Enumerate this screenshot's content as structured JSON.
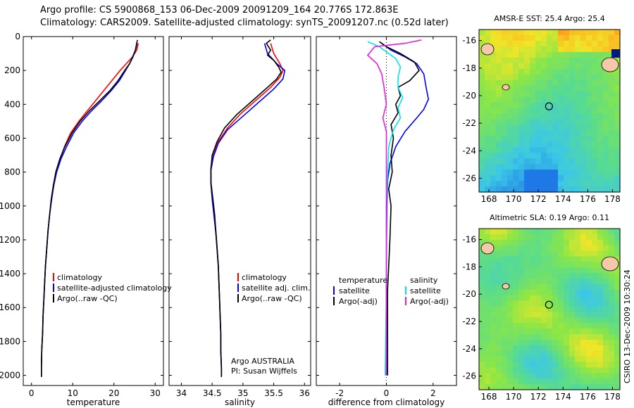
{
  "header": {
    "line1": "Argo profile: CS 5900868_153 06-Dec-2009 20091209_164 20.776S 172.863E",
    "line2": "Climatology: CARS2009. Satellite-adjusted climatology: synTS_20091207.nc (0.52d later)"
  },
  "side_label": "CSIRO 13-Dec-2009 10:30:24",
  "colors": {
    "climatology": "#ff0000",
    "satellite": "#0000ff",
    "argo": "#000000",
    "sal_sat": "#00e6e6",
    "sal_argo": "#e61ee6"
  },
  "chart_data": [
    {
      "type": "line",
      "id": "temp",
      "xlabel": "temperature",
      "ylabel": "",
      "xlim": [
        -2,
        32
      ],
      "ylim": [
        2060,
        0
      ],
      "xticks": [
        0,
        10,
        20,
        30
      ],
      "yticks": [
        0,
        200,
        400,
        600,
        800,
        1000,
        1200,
        1400,
        1600,
        1800,
        2000
      ],
      "legend": [
        "climatology",
        "satellite-adjusted climatology",
        "Argo(..raw -QC)"
      ],
      "series": [
        {
          "name": "climatology",
          "color": "#ff0000",
          "points": [
            [
              25.9,
              40
            ],
            [
              25.5,
              80
            ],
            [
              24.5,
              120
            ],
            [
              23.0,
              160
            ],
            [
              21.5,
              200
            ],
            [
              19.5,
              260
            ],
            [
              17.5,
              320
            ],
            [
              15.5,
              380
            ],
            [
              13.5,
              440
            ],
            [
              11.5,
              500
            ],
            [
              9.5,
              570
            ],
            [
              8.0,
              650
            ],
            [
              7.0,
              720
            ],
            [
              6.0,
              800
            ],
            [
              5.3,
              880
            ],
            [
              4.8,
              960
            ],
            [
              4.4,
              1050
            ],
            [
              4.0,
              1150
            ],
            [
              3.7,
              1250
            ],
            [
              3.4,
              1350
            ],
            [
              3.2,
              1450
            ],
            [
              3.0,
              1550
            ],
            [
              2.8,
              1650
            ],
            [
              2.7,
              1750
            ],
            [
              2.5,
              1850
            ],
            [
              2.4,
              1950
            ],
            [
              2.4,
              2000
            ]
          ]
        },
        {
          "name": "satellite-adjusted climatology",
          "color": "#0000ff",
          "points": [
            [
              25.6,
              40
            ],
            [
              25.2,
              80
            ],
            [
              24.5,
              120
            ],
            [
              23.8,
              160
            ],
            [
              22.8,
              200
            ],
            [
              21.3,
              260
            ],
            [
              19.3,
              320
            ],
            [
              17.0,
              380
            ],
            [
              14.5,
              440
            ],
            [
              12.3,
              500
            ],
            [
              10.2,
              570
            ],
            [
              8.5,
              650
            ],
            [
              7.2,
              720
            ],
            [
              6.1,
              800
            ],
            [
              5.4,
              880
            ],
            [
              4.9,
              960
            ],
            [
              4.4,
              1050
            ],
            [
              4.0,
              1150
            ],
            [
              3.7,
              1250
            ],
            [
              3.4,
              1350
            ],
            [
              3.2,
              1450
            ],
            [
              3.0,
              1550
            ],
            [
              2.8,
              1650
            ],
            [
              2.7,
              1750
            ],
            [
              2.5,
              1850
            ],
            [
              2.4,
              1950
            ],
            [
              2.4,
              2000
            ]
          ]
        },
        {
          "name": "Argo(..raw -QC)",
          "color": "#000000",
          "points": [
            [
              25.7,
              20
            ],
            [
              25.5,
              40
            ],
            [
              25.2,
              80
            ],
            [
              24.6,
              120
            ],
            [
              23.8,
              160
            ],
            [
              22.6,
              200
            ],
            [
              21.0,
              260
            ],
            [
              19.0,
              320
            ],
            [
              16.5,
              380
            ],
            [
              14.0,
              440
            ],
            [
              11.8,
              500
            ],
            [
              9.8,
              570
            ],
            [
              8.1,
              650
            ],
            [
              6.9,
              720
            ],
            [
              5.9,
              800
            ],
            [
              5.3,
              880
            ],
            [
              4.8,
              960
            ],
            [
              4.4,
              1050
            ],
            [
              4.0,
              1150
            ],
            [
              3.7,
              1250
            ],
            [
              3.4,
              1350
            ],
            [
              3.2,
              1450
            ],
            [
              3.0,
              1550
            ],
            [
              2.8,
              1650
            ],
            [
              2.7,
              1750
            ],
            [
              2.5,
              1850
            ],
            [
              2.4,
              1950
            ],
            [
              2.4,
              2010
            ]
          ]
        }
      ]
    },
    {
      "type": "line",
      "id": "sal",
      "xlabel": "salinity",
      "xlim": [
        33.8,
        36.1
      ],
      "ylim": [
        2060,
        0
      ],
      "xticks": [
        34,
        34.5,
        35,
        35.5,
        36
      ],
      "xticklabels": [
        "34",
        "34.5",
        "35",
        "35.5",
        "36"
      ],
      "yticks": [
        0,
        200,
        400,
        600,
        800,
        1000,
        1200,
        1400,
        1600,
        1800,
        2000
      ],
      "legend": [
        "climatology",
        "satellite adj. clim.",
        "Argo(..raw -QC)"
      ],
      "annotation": [
        "Argo AUSTRALIA",
        "PI: Susan Wijffels"
      ],
      "series": [
        {
          "name": "climatology",
          "color": "#ff0000",
          "points": [
            [
              35.45,
              40
            ],
            [
              35.5,
              100
            ],
            [
              35.6,
              160
            ],
            [
              35.65,
              200
            ],
            [
              35.6,
              240
            ],
            [
              35.45,
              300
            ],
            [
              35.2,
              380
            ],
            [
              34.95,
              460
            ],
            [
              34.75,
              540
            ],
            [
              34.6,
              620
            ],
            [
              34.52,
              700
            ],
            [
              34.48,
              780
            ],
            [
              34.48,
              860
            ],
            [
              34.5,
              950
            ],
            [
              34.53,
              1050
            ],
            [
              34.56,
              1150
            ],
            [
              34.58,
              1250
            ],
            [
              34.6,
              1350
            ],
            [
              34.61,
              1450
            ],
            [
              34.62,
              1550
            ],
            [
              34.63,
              1650
            ],
            [
              34.64,
              1750
            ],
            [
              34.64,
              1850
            ],
            [
              34.65,
              1950
            ],
            [
              34.65,
              2000
            ]
          ]
        },
        {
          "name": "satellite adj. clim.",
          "color": "#0000ff",
          "points": [
            [
              35.35,
              40
            ],
            [
              35.4,
              100
            ],
            [
              35.55,
              160
            ],
            [
              35.68,
              200
            ],
            [
              35.65,
              250
            ],
            [
              35.5,
              310
            ],
            [
              35.25,
              390
            ],
            [
              35.0,
              470
            ],
            [
              34.75,
              550
            ],
            [
              34.6,
              630
            ],
            [
              34.52,
              710
            ],
            [
              34.48,
              790
            ],
            [
              34.48,
              870
            ],
            [
              34.5,
              960
            ],
            [
              34.53,
              1060
            ],
            [
              34.56,
              1160
            ],
            [
              34.58,
              1260
            ],
            [
              34.6,
              1360
            ],
            [
              34.61,
              1460
            ],
            [
              34.62,
              1560
            ],
            [
              34.63,
              1660
            ],
            [
              34.64,
              1760
            ],
            [
              34.64,
              1860
            ],
            [
              34.65,
              1960
            ],
            [
              34.65,
              2000
            ]
          ]
        },
        {
          "name": "Argo(..raw -QC)",
          "color": "#000000",
          "points": [
            [
              35.45,
              20
            ],
            [
              35.38,
              40
            ],
            [
              35.45,
              80
            ],
            [
              35.4,
              110
            ],
            [
              35.5,
              140
            ],
            [
              35.58,
              180
            ],
            [
              35.62,
              210
            ],
            [
              35.55,
              250
            ],
            [
              35.4,
              300
            ],
            [
              35.15,
              380
            ],
            [
              34.9,
              460
            ],
            [
              34.7,
              540
            ],
            [
              34.58,
              620
            ],
            [
              34.5,
              700
            ],
            [
              34.48,
              780
            ],
            [
              34.48,
              860
            ],
            [
              34.51,
              950
            ],
            [
              34.54,
              1050
            ],
            [
              34.56,
              1150
            ],
            [
              34.58,
              1250
            ],
            [
              34.6,
              1350
            ],
            [
              34.61,
              1450
            ],
            [
              34.62,
              1550
            ],
            [
              34.63,
              1650
            ],
            [
              34.64,
              1750
            ],
            [
              34.64,
              1850
            ],
            [
              34.65,
              1950
            ],
            [
              34.65,
              2010
            ]
          ]
        }
      ]
    },
    {
      "type": "line",
      "id": "diff",
      "xlabel": "difference from climatology",
      "xlim": [
        -3.0,
        3.0
      ],
      "ylim": [
        2060,
        0
      ],
      "xticks": [
        -2,
        0,
        2
      ],
      "yticks": [
        0,
        200,
        400,
        600,
        800,
        1000,
        1200,
        1400,
        1600,
        1800,
        2000
      ],
      "legend_left": [
        "temperature",
        "satellite",
        "Argo(-adj)"
      ],
      "legend_right": [
        "salinity",
        "satellite",
        "Argo(-adj)"
      ],
      "series": [
        {
          "name": "temperature satellite",
          "color": "#0000ff",
          "points": [
            [
              -0.2,
              40
            ],
            [
              0.2,
              80
            ],
            [
              0.8,
              120
            ],
            [
              1.3,
              160
            ],
            [
              1.6,
              220
            ],
            [
              1.7,
              300
            ],
            [
              1.8,
              370
            ],
            [
              1.6,
              430
            ],
            [
              1.3,
              480
            ],
            [
              0.8,
              560
            ],
            [
              0.4,
              650
            ],
            [
              0.15,
              750
            ],
            [
              0.05,
              850
            ],
            [
              0.02,
              1000
            ],
            [
              0.01,
              1200
            ],
            [
              0,
              1500
            ],
            [
              0,
              2000
            ]
          ]
        },
        {
          "name": "temperature Argo(-adj)",
          "color": "#000000",
          "points": [
            [
              -0.3,
              30
            ],
            [
              0,
              60
            ],
            [
              0.6,
              100
            ],
            [
              1.2,
              150
            ],
            [
              1.4,
              200
            ],
            [
              1.0,
              260
            ],
            [
              0.5,
              300
            ],
            [
              0.6,
              350
            ],
            [
              0.4,
              400
            ],
            [
              0.5,
              450
            ],
            [
              0.2,
              520
            ],
            [
              0.3,
              600
            ],
            [
              0.2,
              700
            ],
            [
              0.25,
              800
            ],
            [
              0.1,
              900
            ],
            [
              0.2,
              1000
            ],
            [
              0.15,
              1200
            ],
            [
              0.05,
              1500
            ],
            [
              0.05,
              2000
            ]
          ]
        },
        {
          "name": "salinity satellite",
          "color": "#00e6e6",
          "points": [
            [
              -0.8,
              30
            ],
            [
              -0.3,
              60
            ],
            [
              0,
              90
            ],
            [
              0.4,
              130
            ],
            [
              0.6,
              180
            ],
            [
              0.5,
              240
            ],
            [
              0.5,
              300
            ],
            [
              0.7,
              360
            ],
            [
              0.5,
              420
            ],
            [
              0.6,
              480
            ],
            [
              0.3,
              550
            ],
            [
              0.1,
              650
            ],
            [
              0.05,
              800
            ],
            [
              0,
              1000
            ],
            [
              0,
              1500
            ],
            [
              -0.05,
              2000
            ]
          ]
        },
        {
          "name": "salinity Argo(-adj)",
          "color": "#e61ee6",
          "points": [
            [
              1.5,
              20
            ],
            [
              0.8,
              40
            ],
            [
              -0.5,
              60
            ],
            [
              -0.8,
              110
            ],
            [
              -0.4,
              160
            ],
            [
              -0.2,
              220
            ],
            [
              -0.1,
              300
            ],
            [
              0,
              400
            ],
            [
              -0.15,
              480
            ],
            [
              0,
              560
            ],
            [
              0,
              700
            ],
            [
              0,
              1000
            ],
            [
              0,
              1500
            ],
            [
              0,
              2000
            ]
          ]
        }
      ]
    },
    {
      "type": "heatmap",
      "id": "sst",
      "title": "AMSR-E SST: 25.4 Argo: 25.4",
      "xlim": [
        167.2,
        178.6
      ],
      "ylim": [
        -27.0,
        -15.2
      ],
      "xticks": [
        168,
        170,
        172,
        174,
        176,
        178
      ],
      "yticks": [
        -16,
        -18,
        -20,
        -22,
        -24,
        -26
      ],
      "argo_position": [
        172.863,
        -20.776
      ]
    },
    {
      "type": "heatmap",
      "id": "sla",
      "title": "Altimetric SLA: 0.19 Argo: 0.11",
      "xlim": [
        167.2,
        178.6
      ],
      "ylim": [
        -27.0,
        -15.2
      ],
      "xticks": [
        168,
        170,
        172,
        174,
        176,
        178
      ],
      "yticks": [
        -16,
        -18,
        -20,
        -22,
        -24,
        -26
      ],
      "argo_position": [
        172.863,
        -20.776
      ]
    }
  ]
}
